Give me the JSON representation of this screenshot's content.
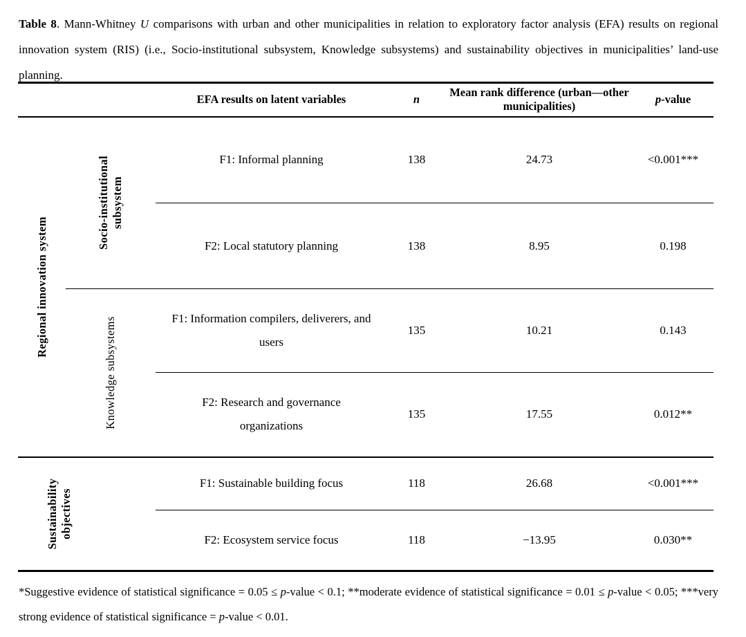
{
  "caption": {
    "runs": [
      {
        "t": "Table 8",
        "b": true
      },
      {
        "t": ". Mann-Whitney "
      },
      {
        "t": "U",
        "i": true
      },
      {
        "t": " comparisons with urban and other municipalities in relation to exploratory factor analysis (EFA) results on regional innovation system (RIS) (i.e., Socio-institutional subsystem, Knowledge subsystems) and sustainability objectives in municipalities’ land-use planning."
      }
    ]
  },
  "table": {
    "headers": {
      "efa": "EFA results on latent variables",
      "n_runs": [
        {
          "t": "n",
          "i": true,
          "b": true
        }
      ],
      "mean_rank": "Mean rank difference (urban—other municipalities)",
      "p_runs": [
        {
          "t": "p",
          "i": true,
          "b": true
        },
        {
          "t": "-value",
          "b": true
        }
      ]
    },
    "groups": {
      "ris": {
        "label": "Regional innovation system",
        "subgroups": {
          "socio": {
            "label": "Socio-institutional\nsubsystem"
          },
          "knowledge": {
            "label": "Knowledge subsystems"
          }
        }
      },
      "sustainability": {
        "label": "Sustainability\nobjectives"
      }
    },
    "rows": [
      {
        "factor": "F1: Informal planning",
        "n": "138",
        "mean": "24.73",
        "p": "<0.001***"
      },
      {
        "factor": "F2: Local statutory planning",
        "n": "138",
        "mean": "8.95",
        "p": "0.198"
      },
      {
        "factor": "F1: Information compilers, deliverers, and\nusers",
        "n": "135",
        "mean": "10.21",
        "p": "0.143"
      },
      {
        "factor": "F2: Research and governance\norganizations",
        "n": "135",
        "mean": "17.55",
        "p": "0.012**"
      },
      {
        "factor": "F1: Sustainable building focus",
        "n": "118",
        "mean": "26.68",
        "p": "<0.001***"
      },
      {
        "factor": "F2: Ecosystem service focus",
        "n": "118",
        "mean": "−13.95",
        "p": "0.030**"
      }
    ]
  },
  "footnote": {
    "runs": [
      {
        "t": "*Suggestive evidence of statistical significance = 0.05 ≤ "
      },
      {
        "t": "p",
        "i": true
      },
      {
        "t": "-value < 0.1; **moderate evidence of statistical significance = 0.01 ≤ "
      },
      {
        "t": "p",
        "i": true
      },
      {
        "t": "-value < 0.05; ***very strong evidence of statistical significance = "
      },
      {
        "t": "p",
        "i": true
      },
      {
        "t": "-value < 0.01."
      }
    ]
  }
}
